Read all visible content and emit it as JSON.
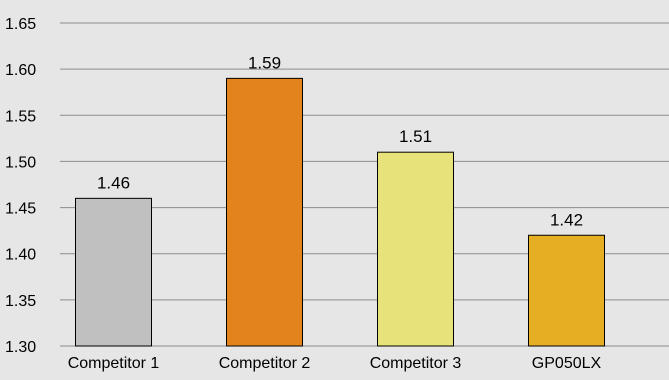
{
  "chart_data": {
    "type": "bar",
    "categories": [
      "Competitor 1",
      "Competitor 2",
      "Competitor 3",
      "GP050LX"
    ],
    "values": [
      1.46,
      1.59,
      1.51,
      1.42
    ],
    "data_labels": [
      "1.46",
      "1.59",
      "1.51",
      "1.42"
    ],
    "bar_colors": [
      "#c0c0c0",
      "#e2841b",
      "#e8e27a",
      "#e6ae22"
    ],
    "yticks": [
      "1.30",
      "1.35",
      "1.40",
      "1.45",
      "1.50",
      "1.55",
      "1.60",
      "1.65"
    ],
    "ylim": [
      1.3,
      1.65
    ],
    "grid": true,
    "title": "",
    "xlabel": "",
    "ylabel": "",
    "background_color": "#e6e6e6",
    "grid_color": "#8c8c8c",
    "bar_outline_color": "#000000"
  }
}
